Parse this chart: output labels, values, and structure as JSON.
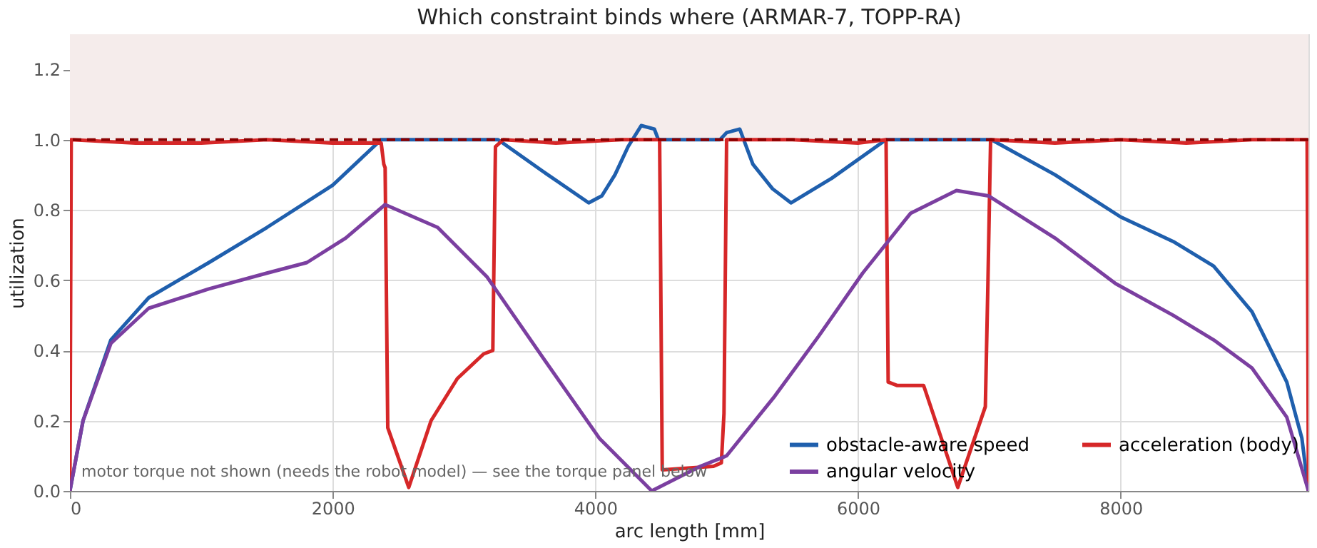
{
  "chart_data": {
    "type": "line",
    "title": "Which constraint binds where  (ARMAR-7, TOPP-RA)",
    "xlabel": "arc length [mm]",
    "ylabel": "utilization",
    "xlim": [
      0,
      9430
    ],
    "ylim": [
      0,
      1.3
    ],
    "xticks": [
      0,
      2000,
      4000,
      6000,
      8000
    ],
    "yticks": [
      {
        "value": 0,
        "label": "0.0"
      },
      {
        "value": 0.2,
        "label": "0.2"
      },
      {
        "value": 0.4,
        "label": "0.4"
      },
      {
        "value": 0.6,
        "label": "0.6"
      },
      {
        "value": 0.8,
        "label": "0.8"
      },
      {
        "value": 1.0,
        "label": "1.0"
      },
      {
        "value": 1.2,
        "label": "1.2"
      }
    ],
    "grid": true,
    "legend": "bottom right",
    "line_style": "solid",
    "marker": "none",
    "series": [
      {
        "name": "obstacle-aware speed",
        "color": "#1f5fad",
        "x": [
          0,
          100,
          312,
          600,
          1058,
          1500,
          2000,
          2370,
          2800,
          3260,
          3600,
          3950,
          4050,
          4150,
          4250,
          4350,
          4450,
          4480,
          4950,
          5000,
          5100,
          5200,
          5350,
          5490,
          5800,
          6214,
          7016,
          7500,
          8000,
          8400,
          8708,
          9000,
          9265,
          9380,
          9430
        ],
        "values": [
          0,
          0.2,
          0.43,
          0.55,
          0.65,
          0.75,
          0.87,
          1.0,
          1.0,
          1.0,
          0.91,
          0.82,
          0.84,
          0.9,
          0.98,
          1.04,
          1.03,
          1.0,
          1.0,
          1.02,
          1.03,
          0.93,
          0.86,
          0.82,
          0.89,
          1.0,
          1.0,
          0.9,
          0.78,
          0.71,
          0.64,
          0.51,
          0.31,
          0.15,
          0
        ]
      },
      {
        "name": "acceleration (body)",
        "color": "#d62728",
        "x": [
          0,
          10,
          500,
          1000,
          1500,
          2000,
          2370,
          2390,
          2400,
          2420,
          2580,
          2750,
          2950,
          3150,
          3220,
          3240,
          3300,
          3700,
          4200,
          4490,
          4510,
          4900,
          4960,
          4980,
          5000,
          5500,
          6000,
          6214,
          6230,
          6300,
          6500,
          6760,
          6970,
          6990,
          7010,
          7500,
          8000,
          8500,
          9000,
          9420,
          9430
        ],
        "values": [
          0,
          1.0,
          0.99,
          0.99,
          1.0,
          0.99,
          0.99,
          0.93,
          0.92,
          0.18,
          0.01,
          0.2,
          0.32,
          0.39,
          0.4,
          0.98,
          1.0,
          0.99,
          1.0,
          1.0,
          0.06,
          0.07,
          0.08,
          0.22,
          1.0,
          1.0,
          0.99,
          1.0,
          0.31,
          0.3,
          0.3,
          0.01,
          0.24,
          0.6,
          1.0,
          0.99,
          1.0,
          0.99,
          1.0,
          1.0,
          0
        ]
      },
      {
        "name": "angular velocity",
        "color": "#7b3fa0",
        "x": [
          0,
          100,
          312,
          600,
          1058,
          1500,
          1804,
          2100,
          2400,
          2800,
          3174,
          3600,
          4031,
          4430,
          4800,
          5000,
          5367,
          5700,
          6036,
          6400,
          6750,
          6993,
          7500,
          7962,
          8400,
          8708,
          9000,
          9265,
          9430
        ],
        "values": [
          0,
          0.2,
          0.42,
          0.52,
          0.575,
          0.62,
          0.65,
          0.72,
          0.815,
          0.75,
          0.61,
          0.38,
          0.15,
          0.0,
          0.07,
          0.1,
          0.27,
          0.44,
          0.62,
          0.79,
          0.855,
          0.84,
          0.72,
          0.59,
          0.5,
          0.43,
          0.35,
          0.21,
          0
        ]
      }
    ],
    "ref_lines": [
      {
        "axis": "y",
        "value": 1.0,
        "color": "#8b0000",
        "line_style": "dashed"
      }
    ],
    "bands": [
      {
        "axis": "y",
        "from": 1.0,
        "to": 1.3,
        "color": "#f5eceb"
      }
    ],
    "annotations": [
      "motor torque not shown (needs the robot model) — see the torque panel below"
    ]
  }
}
